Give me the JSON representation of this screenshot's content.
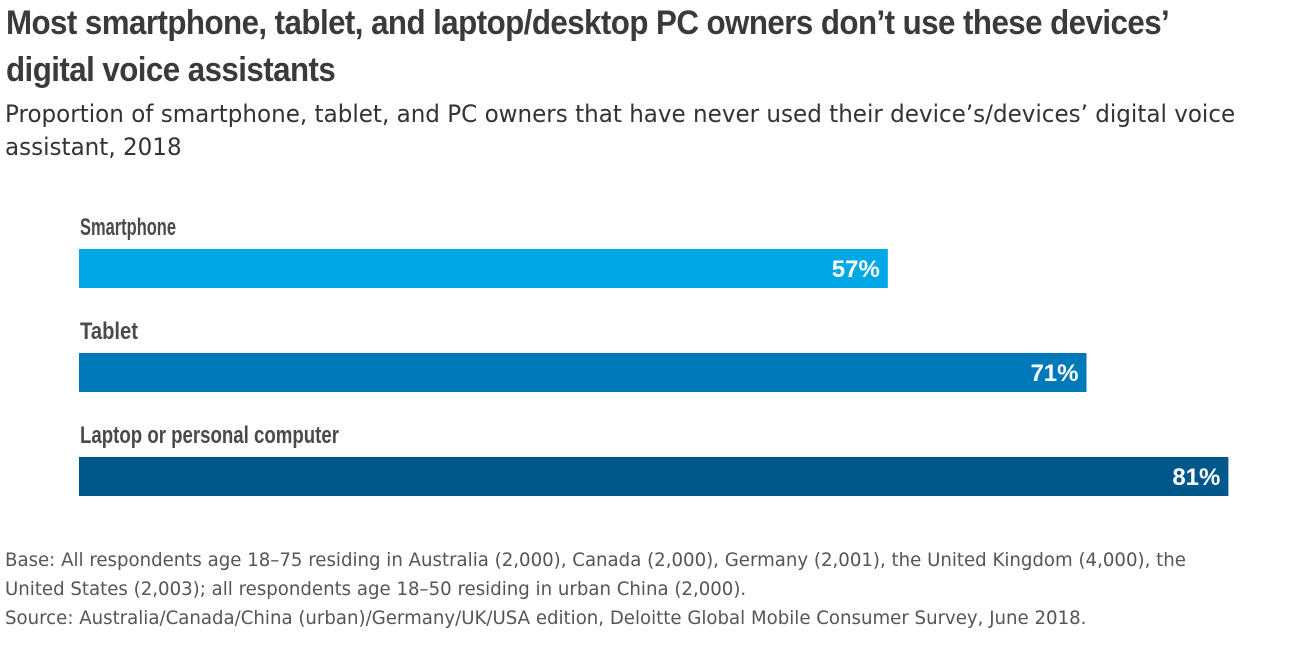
{
  "title": "Most smartphone, tablet, and laptop/desktop PC owners don’t use these devices’ digital voice assistants",
  "subtitle": "Proportion of smartphone, tablet, and PC owners that have never used their device’s/devices’ digital voice assistant, 2018",
  "chart_data": {
    "type": "bar",
    "orientation": "horizontal",
    "categories": [
      "Smartphone",
      "Tablet",
      "Laptop or personal computer"
    ],
    "values": [
      57,
      71,
      81
    ],
    "value_labels": [
      "57%",
      "71%",
      "81%"
    ],
    "colors": [
      "#00a8e6",
      "#0079bb",
      "#00578a"
    ],
    "unit": "%",
    "xlim": [
      0,
      100
    ],
    "grid": false,
    "legend": "none"
  },
  "footnotes": {
    "base": "Base: All respondents age 18–75 residing in Australia (2,000), Canada (2,000), Germany (2,001), the United Kingdom (4,000), the United States (2,003); all respondents age 18–50 residing in urban China (2,000).",
    "source": "Source: Australia/Canada/China (urban)/Germany/UK/USA edition, Deloitte Global Mobile Consumer Survey, June 2018."
  }
}
